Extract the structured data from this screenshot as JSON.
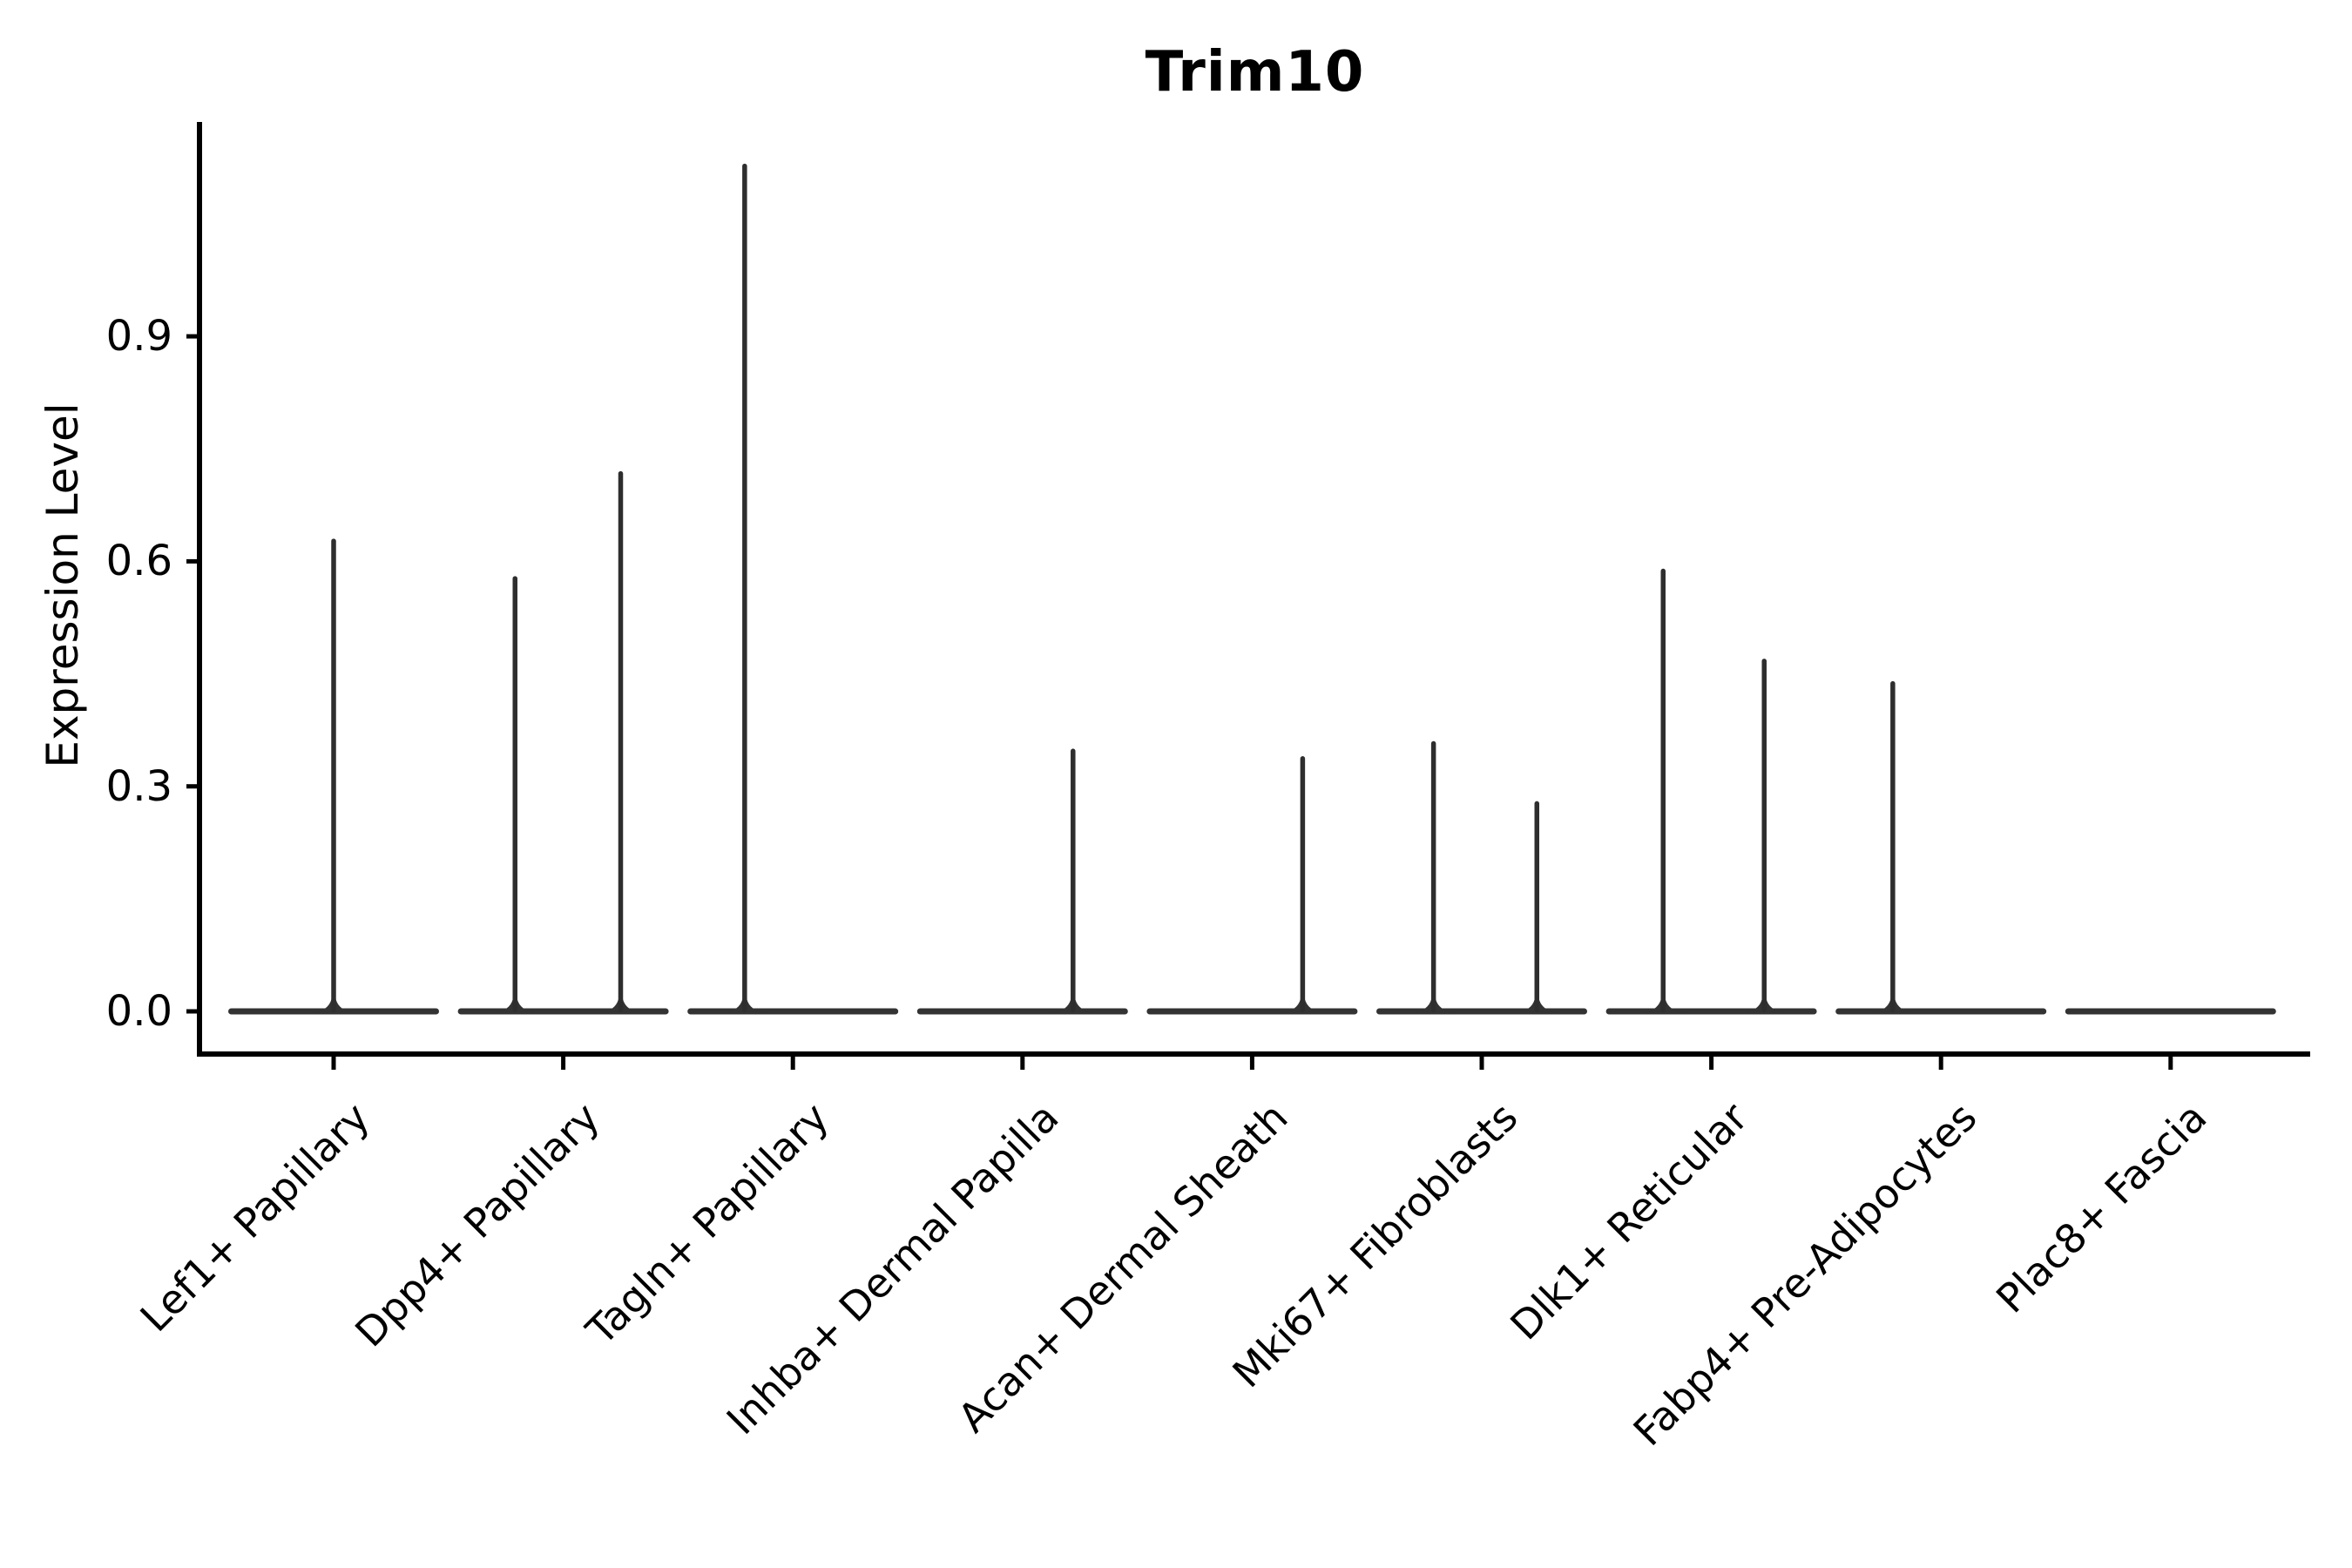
{
  "figure": {
    "title": "Trim10",
    "ylabel": "Expression Level"
  },
  "chart_data": {
    "type": "violin",
    "title": "Trim10",
    "ylabel": "Expression Level",
    "xlabel": "",
    "yticks": [
      0.0,
      0.3,
      0.6,
      0.9
    ],
    "ylim": [
      -0.06,
      1.19
    ],
    "grid": false,
    "legend": "none",
    "categories": [
      "Lef1+ Papillary",
      "Dpp4+ Papillary",
      "Tagln+ Papillary",
      "Inhba+ Dermal Papilla",
      "Acan+ Dermal Sheath",
      "Mki67+ Fibroblasts",
      "Dlk1+ Reticular",
      "Fabp4+ Pre-Adipocytes",
      "Plac8+ Fascia"
    ],
    "violins": [
      {
        "category": "Lef1+ Papillary",
        "body_max": 0.0,
        "spikes": [
          {
            "x_offset": 0.0,
            "max": 0.63
          }
        ]
      },
      {
        "category": "Dpp4+ Papillary",
        "body_max": 0.0,
        "spikes": [
          {
            "x_offset": -0.21,
            "max": 0.58
          },
          {
            "x_offset": 0.25,
            "max": 0.72
          }
        ]
      },
      {
        "category": "Tagln+ Papillary",
        "body_max": 0.0,
        "spikes": [
          {
            "x_offset": -0.21,
            "max": 1.13
          }
        ]
      },
      {
        "category": "Inhba+ Dermal Papilla",
        "body_max": 0.0,
        "spikes": [
          {
            "x_offset": 0.22,
            "max": 0.35
          }
        ]
      },
      {
        "category": "Acan+ Dermal Sheath",
        "body_max": 0.0,
        "spikes": [
          {
            "x_offset": 0.22,
            "max": 0.34
          }
        ]
      },
      {
        "category": "Mki67+ Fibroblasts",
        "body_max": 0.0,
        "spikes": [
          {
            "x_offset": -0.21,
            "max": 0.36
          },
          {
            "x_offset": 0.24,
            "max": 0.28
          }
        ]
      },
      {
        "category": "Dlk1+ Reticular",
        "body_max": 0.0,
        "spikes": [
          {
            "x_offset": -0.21,
            "max": 0.59
          },
          {
            "x_offset": 0.23,
            "max": 0.47
          }
        ]
      },
      {
        "category": "Fabp4+ Pre-Adipocytes",
        "body_max": 0.0,
        "spikes": [
          {
            "x_offset": -0.21,
            "max": 0.44
          }
        ]
      },
      {
        "category": "Plac8+ Fascia",
        "body_max": 0.0,
        "spikes": []
      }
    ],
    "colors": {
      "violin_stroke": "#2e2e2e",
      "violin_body": "#333333",
      "axis": "#000000",
      "background": "#ffffff"
    }
  }
}
